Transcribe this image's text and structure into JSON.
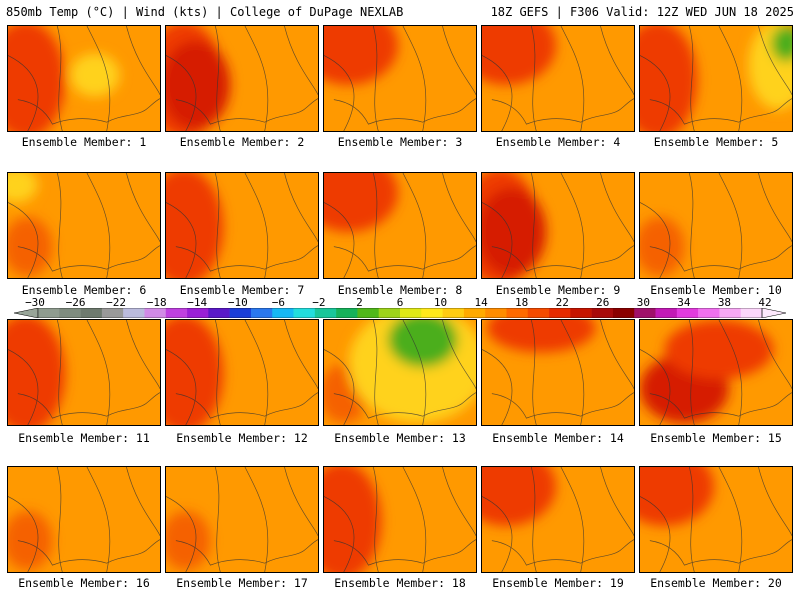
{
  "header": {
    "left": "850mb Temp (°C) | Wind (kts) | College of DuPage NEXLAB",
    "right": "18Z GEFS | F306 Valid: 12Z WED JUN 18 2025"
  },
  "colors": {
    "warm_base": "#ff9900",
    "hot": "#ee3a00",
    "very_hot": "#d61a00",
    "cool": "#ffd21a",
    "green": "#4cae1c"
  },
  "members": [
    {
      "label": "Ensemble Member: 1",
      "hot_side": "west",
      "cool_spot": "center"
    },
    {
      "label": "Ensemble Member: 2",
      "hot_side": "west-strong"
    },
    {
      "label": "Ensemble Member: 3",
      "hot_side": "northwest"
    },
    {
      "label": "Ensemble Member: 4",
      "hot_side": "northwest"
    },
    {
      "label": "Ensemble Member: 5",
      "hot_side": "west",
      "cool_spot": "northeast-green"
    },
    {
      "label": "Ensemble Member: 6",
      "hot_side": "none",
      "cool_spot": "northwest"
    },
    {
      "label": "Ensemble Member: 7",
      "hot_side": "west"
    },
    {
      "label": "Ensemble Member: 8",
      "hot_side": "northwest"
    },
    {
      "label": "Ensemble Member: 9",
      "hot_side": "west-strong"
    },
    {
      "label": "Ensemble Member: 10",
      "hot_side": "none"
    },
    {
      "label": "Ensemble Member: 11",
      "hot_side": "west"
    },
    {
      "label": "Ensemble Member: 12",
      "hot_side": "west"
    },
    {
      "label": "Ensemble Member: 13",
      "hot_side": "none",
      "cool_spot": "north-green"
    },
    {
      "label": "Ensemble Member: 14",
      "hot_side": "north"
    },
    {
      "label": "Ensemble Member: 15",
      "hot_side": "southwest"
    },
    {
      "label": "Ensemble Member: 16",
      "hot_side": "none"
    },
    {
      "label": "Ensemble Member: 17",
      "hot_side": "none"
    },
    {
      "label": "Ensemble Member: 18",
      "hot_side": "west"
    },
    {
      "label": "Ensemble Member: 19",
      "hot_side": "northwest"
    },
    {
      "label": "Ensemble Member: 20",
      "hot_side": "northwest"
    }
  ],
  "legend": {
    "ticks": [
      "−30",
      "−26",
      "−22",
      "−18",
      "−14",
      "−10",
      "−6",
      "−2",
      "2",
      "6",
      "10",
      "14",
      "18",
      "22",
      "26",
      "30",
      "34",
      "38",
      "42"
    ],
    "colors": [
      "#8f9c8f",
      "#7f8c7f",
      "#6e7a6e",
      "#999999",
      "#bbbbdd",
      "#d18ae6",
      "#bf40e0",
      "#9a1fd6",
      "#5a19c8",
      "#1a3ed8",
      "#2a78ee",
      "#16b8f4",
      "#22dddd",
      "#19c69a",
      "#16b25a",
      "#50b81a",
      "#9dd31a",
      "#e0e815",
      "#ffe81a",
      "#ffcc11",
      "#ffaa00",
      "#ff8c00",
      "#ff6a00",
      "#f54b00",
      "#e62a00",
      "#c61400",
      "#a80a0a",
      "#8a0000",
      "#a0106a",
      "#c31ab6",
      "#e23bde",
      "#f070ef",
      "#f7a8f4",
      "#fcd6fb"
    ]
  }
}
